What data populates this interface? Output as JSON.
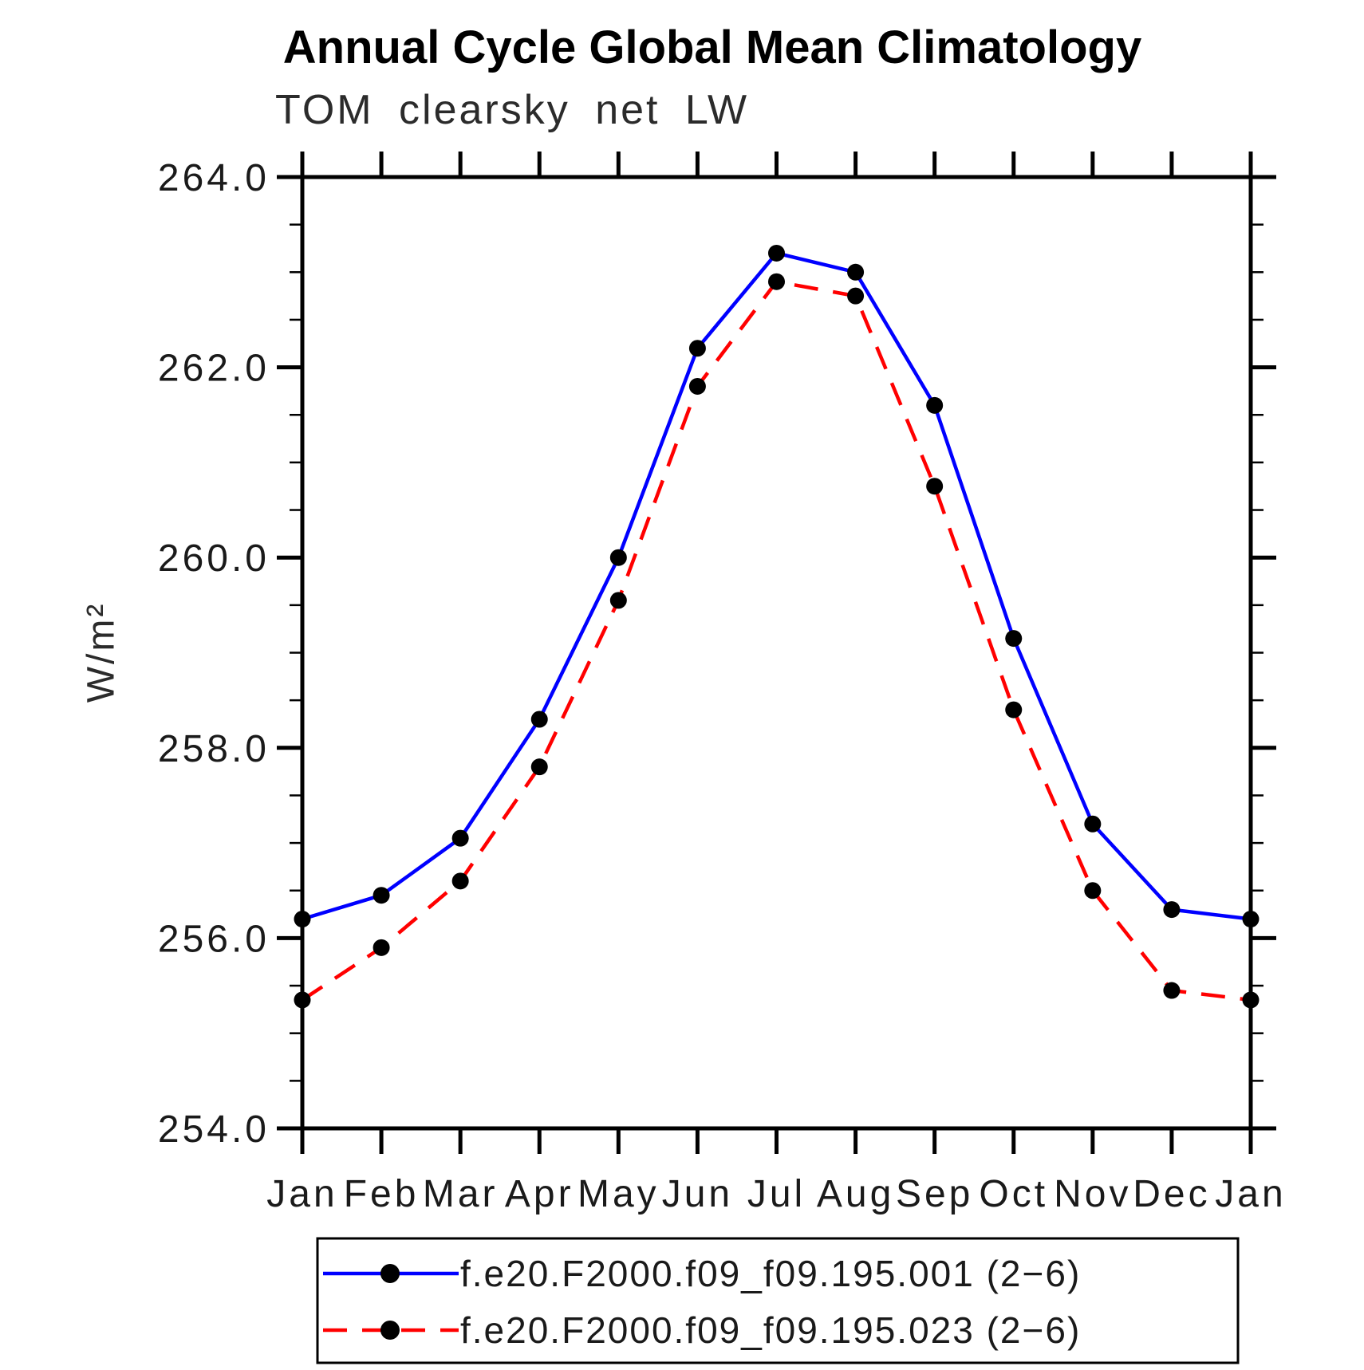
{
  "page": {
    "background": "#ffffff"
  },
  "chart_data": {
    "type": "line",
    "title": "Annual Cycle Global Mean Climatology",
    "subtitle": "TOM clearsky net LW",
    "ylabel": "W/m²",
    "xlabel": "",
    "categories": [
      "Jan",
      "Feb",
      "Mar",
      "Apr",
      "May",
      "Jun",
      "Jul",
      "Aug",
      "Sep",
      "Oct",
      "Nov",
      "Dec",
      "Jan"
    ],
    "ylim": [
      254.0,
      264.0
    ],
    "yticks": [
      {
        "value": 254.0,
        "label": "254.0"
      },
      {
        "value": 256.0,
        "label": "256.0"
      },
      {
        "value": 258.0,
        "label": "258.0"
      },
      {
        "value": 260.0,
        "label": "260.0"
      },
      {
        "value": 262.0,
        "label": "262.0"
      },
      {
        "value": 264.0,
        "label": "264.0"
      }
    ],
    "y_minor_step": 0.5,
    "grid": false,
    "legend_position": "bottom",
    "axis_color": "#000000",
    "marker_color": "#000000",
    "series": [
      {
        "name": "f.e20.F2000.f09_f09.195.001 (2−6)",
        "color": "#0000ff",
        "style": "solid",
        "marker": "circle",
        "values": [
          256.2,
          256.45,
          257.05,
          258.3,
          260.0,
          262.2,
          263.2,
          263.0,
          261.6,
          259.15,
          257.2,
          256.3,
          256.2
        ]
      },
      {
        "name": "f.e20.F2000.f09_f09.195.023 (2−6)",
        "color": "#ff0000",
        "style": "dashed",
        "marker": "circle",
        "values": [
          255.35,
          255.9,
          256.6,
          257.8,
          259.55,
          261.8,
          262.9,
          262.75,
          260.75,
          258.4,
          256.5,
          255.45,
          255.35
        ]
      }
    ]
  }
}
